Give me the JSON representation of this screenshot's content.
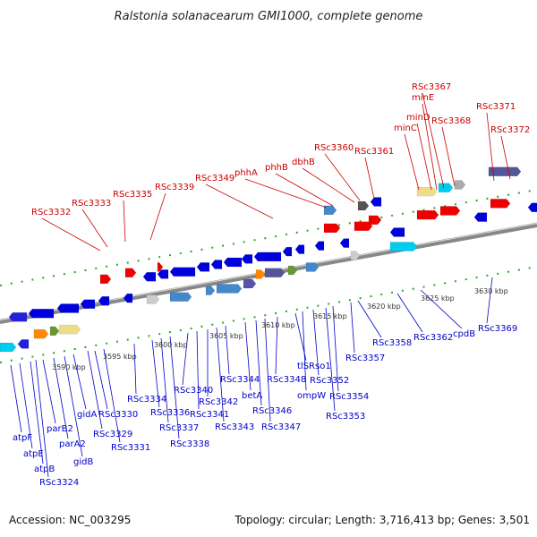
{
  "title": "Ralstonia solanacearum GMI1000, complete genome",
  "footer": {
    "accession": "Accession: NC_003295",
    "summary": "Topology: circular; Length: 3,716,413 bp; Genes: 3,501"
  },
  "ticks": [
    "3590 kbp",
    "3595 kbp",
    "3600 kbp",
    "3605 kbp",
    "3610 kbp",
    "3615 kbp",
    "3620 kbp",
    "3625 kbp",
    "3630 kbp"
  ],
  "top_labels": [
    "RSc3332",
    "RSc3333",
    "RSc3335",
    "RSc3339",
    "RSc3349",
    "phhA",
    "phhB",
    "dbhB",
    "RSc3360",
    "RSc3361",
    "minC",
    "minD",
    "minE",
    "RSc3367",
    "RSc3368",
    "RSc3371",
    "RSc3372"
  ],
  "bottom_labels": [
    "atpF",
    "atpE",
    "atpB",
    "RSc3324",
    "parB2",
    "parA2",
    "gidB",
    "gidA",
    "RSc3329",
    "RSc3330",
    "RSc3331",
    "RSc3334",
    "RSc3336",
    "RSc3337",
    "RSc3338",
    "RSc3340",
    "RSc3341",
    "RSc3342",
    "RSc3343",
    "RSc3344",
    "betA",
    "RSc3346",
    "RSc3347",
    "RSc3348",
    "tlSRso1",
    "ompW",
    "RSc3352",
    "RSc3353",
    "RSc3354",
    "RSc3357",
    "RSc3358",
    "RSc3362",
    "cpdB",
    "RSc3369"
  ],
  "colors": {
    "forward_gene": "#ee0000",
    "reverse_gene": "#0000dd",
    "backbone": "#888888",
    "tick_green": "#228822"
  }
}
